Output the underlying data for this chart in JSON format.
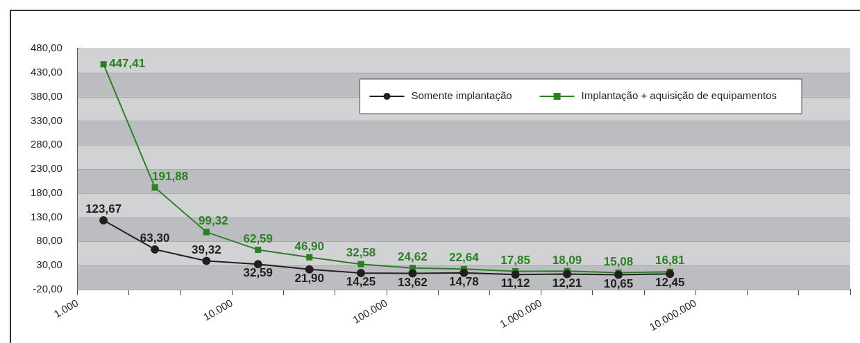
{
  "chart_data": {
    "type": "line",
    "x": [
      1470,
      3160,
      6810,
      14700,
      31600,
      68100,
      147000,
      316000,
      681000,
      1470000,
      3160000,
      6810000
    ],
    "log": "x",
    "xlim": [
      1000,
      100000000
    ],
    "xticks": [
      {
        "value": 1000,
        "label": "1.000"
      },
      {
        "value": 2150,
        "label": null
      },
      {
        "value": 4640,
        "label": null
      },
      {
        "value": 10000,
        "label": "10.000"
      },
      {
        "value": 21500,
        "label": null
      },
      {
        "value": 46400,
        "label": null
      },
      {
        "value": 100000,
        "label": "100.000"
      },
      {
        "value": 215000,
        "label": null
      },
      {
        "value": 464000,
        "label": null
      },
      {
        "value": 1000000,
        "label": "1.000.000"
      },
      {
        "value": 2150000,
        "label": null
      },
      {
        "value": 4640000,
        "label": null
      },
      {
        "value": 10000000,
        "label": "10.000.000"
      },
      {
        "value": 21500000,
        "label": null
      },
      {
        "value": 46400000,
        "label": null
      },
      {
        "value": 100000000,
        "label": null
      }
    ],
    "ylim": [
      -20,
      480
    ],
    "yticks": [
      {
        "value": -20,
        "label": "-20,00"
      },
      {
        "value": 30,
        "label": "30,00"
      },
      {
        "value": 80,
        "label": "80,00"
      },
      {
        "value": 130,
        "label": "130,00"
      },
      {
        "value": 180,
        "label": "180,00"
      },
      {
        "value": 230,
        "label": "230,00"
      },
      {
        "value": 280,
        "label": "280,00"
      },
      {
        "value": 330,
        "label": "330,00"
      },
      {
        "value": 380,
        "label": "380,00"
      },
      {
        "value": 430,
        "label": "430,00"
      },
      {
        "value": 480,
        "label": "480,00"
      }
    ],
    "series": [
      {
        "name": "Somente implantação",
        "color": "#231f20",
        "marker": "circle",
        "values": [
          123.67,
          63.3,
          39.32,
          32.59,
          21.9,
          14.25,
          13.62,
          14.78,
          11.12,
          12.21,
          10.65,
          12.45
        ],
        "value_labels": [
          "123,67",
          "63,30",
          "39,32",
          "32,59",
          "21,90",
          "14,25",
          "13,62",
          "14,78",
          "11,12",
          "12,21",
          "10,65",
          "12,45"
        ]
      },
      {
        "name": "Implantação + aquisição de equipamentos",
        "color": "#2e7d27",
        "marker": "square",
        "values": [
          447.41,
          191.88,
          99.32,
          62.59,
          46.9,
          32.58,
          24.62,
          22.64,
          17.85,
          18.09,
          15.08,
          16.81
        ],
        "value_labels": [
          "447,41",
          "191,88",
          "99,32",
          "62,59",
          "46,90",
          "32,58",
          "24,62",
          "22,64",
          "17,85",
          "18,09",
          "15,08",
          "16,81"
        ]
      }
    ],
    "grid": "y",
    "legend": "top right",
    "line_style": "solid"
  }
}
